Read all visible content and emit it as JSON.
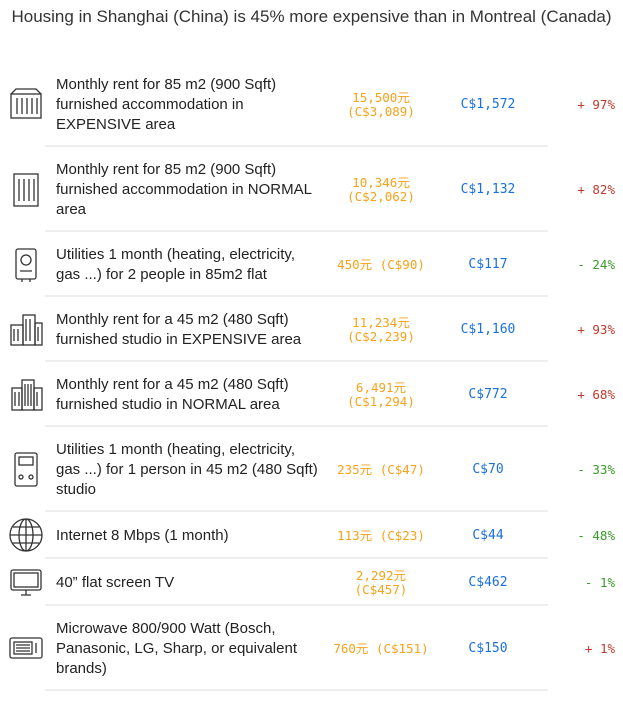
{
  "title": "Housing in Shanghai (China) is 45% more expensive than in Montreal (Canada)",
  "rows": [
    {
      "icon": "building-icon",
      "desc": "Monthly rent for 85 m2 (900 Sqft) furnished accommodation in EXPENSIVE area",
      "local": "15,500元",
      "local_cad": "(C$3,089)",
      "cad": "C$1,572",
      "diff": "+ 97%",
      "dir": "up"
    },
    {
      "icon": "tall-building-icon",
      "desc": "Monthly rent for 85 m2 (900 Sqft) furnished accommodation in NORMAL area",
      "local": "10,346元",
      "local_cad": "(C$2,062)",
      "cad": "C$1,132",
      "diff": "+ 82%",
      "dir": "up"
    },
    {
      "icon": "heater-icon",
      "desc": "Utilities 1 month (heating, electricity, gas ...) for 2 people in 85m2 flat",
      "local": "450元",
      "local_cad": "(C$90)",
      "cad": "C$117",
      "diff": "- 24%",
      "dir": "down"
    },
    {
      "icon": "city-buildings-icon",
      "desc": "Monthly rent for a 45 m2 (480 Sqft) furnished studio in EXPENSIVE area",
      "local": "11,234元",
      "local_cad": "(C$2,239)",
      "cad": "C$1,160",
      "diff": "+ 93%",
      "dir": "up"
    },
    {
      "icon": "apartment-buildings-icon",
      "desc": "Monthly rent for a 45 m2 (480 Sqft) furnished studio in NORMAL area",
      "local": "6,491元",
      "local_cad": "(C$1,294)",
      "cad": "C$772",
      "diff": "+ 68%",
      "dir": "up"
    },
    {
      "icon": "meter-icon",
      "desc": "Utilities 1 month (heating, electricity, gas ...) for 1 person in 45 m2 (480 Sqft) studio",
      "local": "235元",
      "local_cad": "(C$47)",
      "cad": "C$70",
      "diff": "- 33%",
      "dir": "down"
    },
    {
      "icon": "globe-icon",
      "desc": "Internet 8 Mbps (1 month)",
      "local": "113元",
      "local_cad": "(C$23)",
      "cad": "C$44",
      "diff": "- 48%",
      "dir": "down"
    },
    {
      "icon": "tv-icon",
      "desc": "40” flat screen TV",
      "local": "2,292元",
      "local_cad": "(C$457)",
      "cad": "C$462",
      "diff": "- 1%",
      "dir": "down"
    },
    {
      "icon": "microwave-icon",
      "desc": "Microwave 800/900 Watt (Bosch, Panasonic, LG, Sharp, or equivalent brands)",
      "local": "760元",
      "local_cad": "(C$151)",
      "cad": "C$150",
      "diff": "+ 1%",
      "dir": "up"
    }
  ]
}
